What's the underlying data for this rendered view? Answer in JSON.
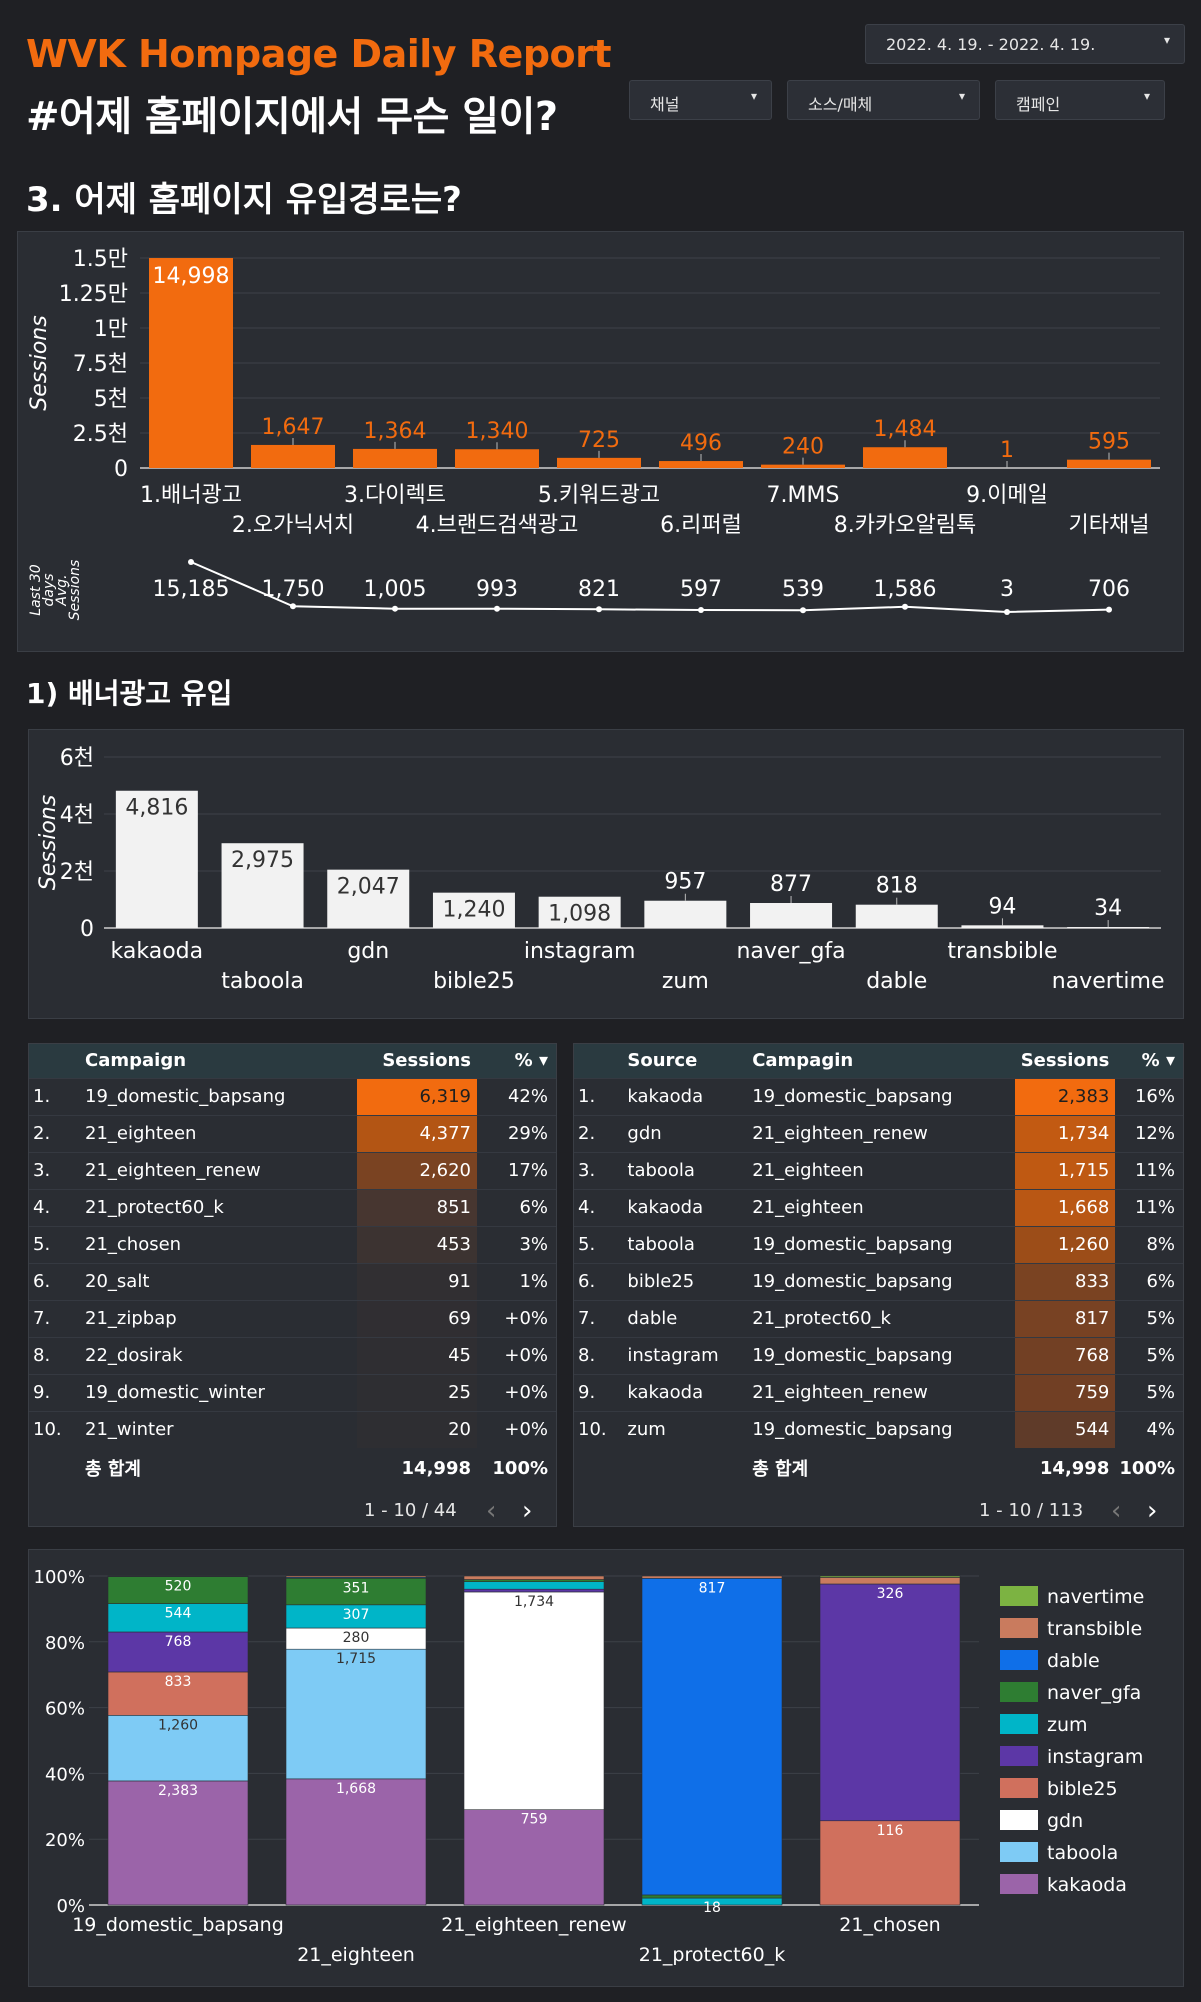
{
  "header": {
    "title": "WVK Hompage Daily Report",
    "subtitle": "#어제 홈페이지에서 무슨 일이?",
    "date_range": "2022. 4. 19. - 2022. 4. 19.",
    "filters": [
      "채널",
      "소스/매체",
      "캠페인"
    ]
  },
  "section3": {
    "title": "3. 어제 홈페이지 유입경로는?",
    "chart_data": {
      "type": "bar",
      "ylabel": "Sessions",
      "ylim": [
        0,
        15000
      ],
      "y_ticks": [
        "0",
        "2.5천",
        "5천",
        "7.5천",
        "1만",
        "1.25만",
        "1.5만"
      ],
      "categories": [
        "1.배너광고",
        "2.오가닉서치",
        "3.다이렉트",
        "4.브랜드검색광고",
        "5.키워드광고",
        "6.리퍼럴",
        "7.MMS",
        "8.카카오알림톡",
        "9.이메일",
        "기타채널"
      ],
      "values": [
        14998,
        1647,
        1364,
        1340,
        725,
        496,
        240,
        1484,
        1,
        595
      ],
      "value_labels": [
        "14,998",
        "1,647",
        "1,364",
        "1,340",
        "725",
        "496",
        "240",
        "1,484",
        "1",
        "595"
      ]
    },
    "avg_chart": {
      "ylabel": [
        "Last 30",
        "days",
        "Avg.",
        "Sessions"
      ],
      "values": [
        15185,
        1750,
        1005,
        993,
        821,
        597,
        539,
        1586,
        3,
        706
      ],
      "value_labels": [
        "15,185",
        "1,750",
        "1,005",
        "993",
        "821",
        "597",
        "539",
        "1,586",
        "3",
        "706"
      ]
    }
  },
  "section_banner": {
    "title": "1) 배너광고 유입",
    "chart_data": {
      "type": "bar",
      "ylabel": "Sessions",
      "ylim": [
        0,
        6000
      ],
      "y_ticks": [
        "0",
        "2천",
        "4천",
        "6천"
      ],
      "categories": [
        "kakaoda",
        "taboola",
        "gdn",
        "bible25",
        "instagram",
        "zum",
        "naver_gfa",
        "dable",
        "transbible",
        "navertime"
      ],
      "values": [
        4816,
        2975,
        2047,
        1240,
        1098,
        957,
        877,
        818,
        94,
        34
      ],
      "value_labels": [
        "4,816",
        "2,975",
        "2,047",
        "1,240",
        "1,098",
        "957",
        "877",
        "818",
        "94",
        "34"
      ]
    }
  },
  "table_campaign": {
    "headers": [
      "Campaign",
      "Sessions",
      "% ▾"
    ],
    "rows": [
      {
        "rank": "1.",
        "name": "19_domestic_bapsang",
        "sessions": "6,319",
        "pct": "42%",
        "shade": "#f26b0f"
      },
      {
        "rank": "2.",
        "name": "21_eighteen",
        "sessions": "4,377",
        "pct": "29%",
        "shade": "#b35514"
      },
      {
        "rank": "3.",
        "name": "21_eighteen_renew",
        "sessions": "2,620",
        "pct": "17%",
        "shade": "#7a4322"
      },
      {
        "rank": "4.",
        "name": "21_protect60_k",
        "sessions": "851",
        "pct": "6%",
        "shade": "#473630"
      },
      {
        "rank": "5.",
        "name": "21_chosen",
        "sessions": "453",
        "pct": "3%",
        "shade": "#3c3331"
      },
      {
        "rank": "6.",
        "name": "20_salt",
        "sessions": "91",
        "pct": "1%",
        "shade": "#312f32"
      },
      {
        "rank": "7.",
        "name": "21_zipbap",
        "sessions": "69",
        "pct": "+0%",
        "shade": "#302e32"
      },
      {
        "rank": "8.",
        "name": "22_dosirak",
        "sessions": "45",
        "pct": "+0%",
        "shade": "#2f2e32"
      },
      {
        "rank": "9.",
        "name": "19_domestic_winter",
        "sessions": "25",
        "pct": "+0%",
        "shade": "#2e2e32"
      },
      {
        "rank": "10.",
        "name": "21_winter",
        "sessions": "20",
        "pct": "+0%",
        "shade": "#2e2e32"
      }
    ],
    "total_label": "총 합계",
    "total_sessions": "14,998",
    "total_pct": "100%",
    "pager": "1 - 10 / 44"
  },
  "table_source": {
    "headers": [
      "Source",
      "Campagin",
      "Sessions",
      "% ▾"
    ],
    "rows": [
      {
        "rank": "1.",
        "source": "kakaoda",
        "campaign": "19_domestic_bapsang",
        "sessions": "2,383",
        "pct": "16%",
        "shade": "#f26b0f"
      },
      {
        "rank": "2.",
        "source": "gdn",
        "campaign": "21_eighteen_renew",
        "sessions": "1,734",
        "pct": "12%",
        "shade": "#c25a12"
      },
      {
        "rank": "3.",
        "source": "taboola",
        "campaign": "21_eighteen",
        "sessions": "1,715",
        "pct": "11%",
        "shade": "#bf5912"
      },
      {
        "rank": "4.",
        "source": "kakaoda",
        "campaign": "21_eighteen",
        "sessions": "1,668",
        "pct": "11%",
        "shade": "#b95714"
      },
      {
        "rank": "5.",
        "source": "taboola",
        "campaign": "19_domestic_bapsang",
        "sessions": "1,260",
        "pct": "8%",
        "shade": "#9c4d18"
      },
      {
        "rank": "6.",
        "source": "bible25",
        "campaign": "19_domestic_bapsang",
        "sessions": "833",
        "pct": "6%",
        "shade": "#7a4322"
      },
      {
        "rank": "7.",
        "source": "dable",
        "campaign": "21_protect60_k",
        "sessions": "817",
        "pct": "5%",
        "shade": "#784223"
      },
      {
        "rank": "8.",
        "source": "instagram",
        "campaign": "19_domestic_bapsang",
        "sessions": "768",
        "pct": "5%",
        "shade": "#724024"
      },
      {
        "rank": "9.",
        "source": "kakaoda",
        "campaign": "21_eighteen_renew",
        "sessions": "759",
        "pct": "5%",
        "shade": "#713f24"
      },
      {
        "rank": "10.",
        "source": "zum",
        "campaign": "19_domestic_bapsang",
        "sessions": "544",
        "pct": "4%",
        "shade": "#5f3b29"
      }
    ],
    "total_label": "총 합계",
    "total_sessions": "14,998",
    "total_pct": "100%",
    "pager": "1 - 10 / 113"
  },
  "stacked": {
    "chart_data": {
      "type": "bar",
      "stacked": "percent",
      "y_ticks": [
        "0%",
        "20%",
        "40%",
        "60%",
        "80%",
        "100%"
      ],
      "categories": [
        "19_domestic_bapsang",
        "21_eighteen",
        "21_eighteen_renew",
        "21_protect60_k",
        "21_chosen"
      ],
      "legend": [
        "navertime",
        "transbible",
        "dable",
        "naver_gfa",
        "zum",
        "instagram",
        "bible25",
        "gdn",
        "taboola",
        "kakaoda"
      ],
      "colors": {
        "kakaoda": "#9b64a9",
        "taboola": "#7ecbf5",
        "gdn": "#ffffff",
        "bible25": "#d0705d",
        "instagram": "#5c37a6",
        "zum": "#00b5c8",
        "naver_gfa": "#2e7d32",
        "dable": "#0f6fe8",
        "transbible": "#c97b5e",
        "navertime": "#7cb342"
      },
      "series_order_bottom_up": [
        "kakaoda",
        "taboola",
        "gdn",
        "bible25",
        "instagram",
        "zum",
        "naver_gfa",
        "dable",
        "transbible",
        "navertime"
      ],
      "stacks": [
        {
          "kakaoda": 2383,
          "taboola": 1260,
          "bible25": 833,
          "instagram": 768,
          "zum": 544,
          "naver_gfa": 520,
          "transbible": 8,
          "navertime": 3
        },
        {
          "kakaoda": 1668,
          "taboola": 1715,
          "gdn": 280,
          "zum": 307,
          "naver_gfa": 351,
          "transbible": 18,
          "dable": 12
        },
        {
          "kakaoda": 759,
          "gdn": 1734,
          "transbible": 28,
          "zum": 60,
          "naver_gfa": 17,
          "instagram": 22
        },
        {
          "zum": 18,
          "dable": 817,
          "naver_gfa": 8,
          "transbible": 6
        },
        {
          "bible25": 116,
          "instagram": 326,
          "transbible": 9,
          "navertime": 2
        }
      ],
      "segment_labels": [
        [
          [
            "kakaoda",
            "2,383"
          ],
          [
            "taboola",
            "1,260"
          ],
          [
            "bible25",
            "833"
          ],
          [
            "instagram",
            "768"
          ],
          [
            "zum",
            "544"
          ],
          [
            "naver_gfa",
            "520"
          ]
        ],
        [
          [
            "kakaoda",
            "1,668"
          ],
          [
            "taboola",
            "1,715"
          ],
          [
            "gdn",
            "280"
          ],
          [
            "zum",
            "307"
          ],
          [
            "naver_gfa",
            "351"
          ]
        ],
        [
          [
            "kakaoda",
            "759"
          ],
          [
            "gdn",
            "1,734"
          ]
        ],
        [
          [
            "dable",
            "817"
          ],
          [
            "zum",
            "18"
          ]
        ],
        [
          [
            "bible25",
            "116"
          ],
          [
            "instagram",
            "326"
          ]
        ]
      ]
    }
  }
}
